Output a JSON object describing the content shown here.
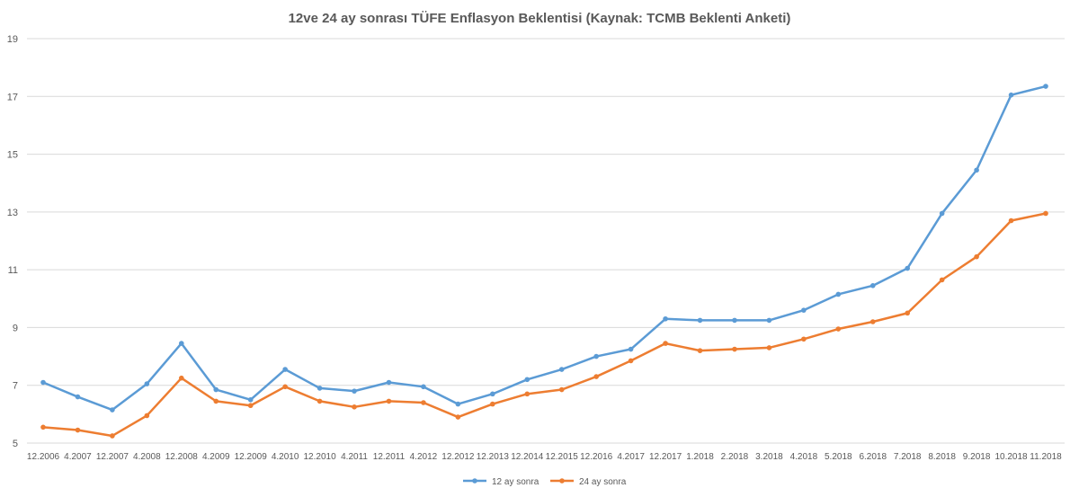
{
  "chart_data": {
    "type": "line",
    "title": "12ve 24 ay sonrası TÜFE Enflasyon Beklentisi (Kaynak: TCMB Beklenti Anketi)",
    "xlabel": "",
    "ylabel": "",
    "ylim": [
      5,
      19
    ],
    "yticks": [
      "5",
      "7",
      "9",
      "11",
      "13",
      "15",
      "17",
      "19"
    ],
    "grid": true,
    "legend_position": "bottom",
    "categories": [
      "12.2006",
      "4.2007",
      "12.2007",
      "4.2008",
      "12.2008",
      "4.2009",
      "12.2009",
      "4.2010",
      "12.2010",
      "4.2011",
      "12.2011",
      "4.2012",
      "12.2012",
      "12.2013",
      "12.2014",
      "12.2015",
      "12.2016",
      "4.2017",
      "12.2017",
      "1.2018",
      "2.2018",
      "3.2018",
      "4.2018",
      "5.2018",
      "6.2018",
      "7.2018",
      "8.2018",
      "9.2018",
      "10.2018",
      "11.2018"
    ],
    "series": [
      {
        "name": "12 ay sonra",
        "color": "#5B9BD5",
        "values": [
          7.1,
          6.6,
          6.15,
          7.05,
          8.45,
          6.85,
          6.5,
          7.55,
          6.9,
          6.8,
          7.1,
          6.95,
          6.35,
          6.7,
          7.2,
          7.55,
          8.0,
          8.25,
          9.3,
          9.25,
          9.25,
          9.25,
          9.6,
          10.15,
          10.45,
          11.05,
          12.95,
          14.45,
          17.05,
          17.35
        ]
      },
      {
        "name": "24 ay sonra",
        "color": "#ED7D31",
        "values": [
          5.55,
          5.45,
          5.25,
          5.95,
          7.25,
          6.45,
          6.3,
          6.95,
          6.45,
          6.25,
          6.45,
          6.4,
          5.9,
          6.35,
          6.7,
          6.85,
          7.3,
          7.85,
          8.45,
          8.2,
          8.25,
          8.3,
          8.6,
          8.95,
          9.2,
          9.5,
          10.65,
          11.45,
          12.7,
          12.95
        ]
      }
    ]
  }
}
